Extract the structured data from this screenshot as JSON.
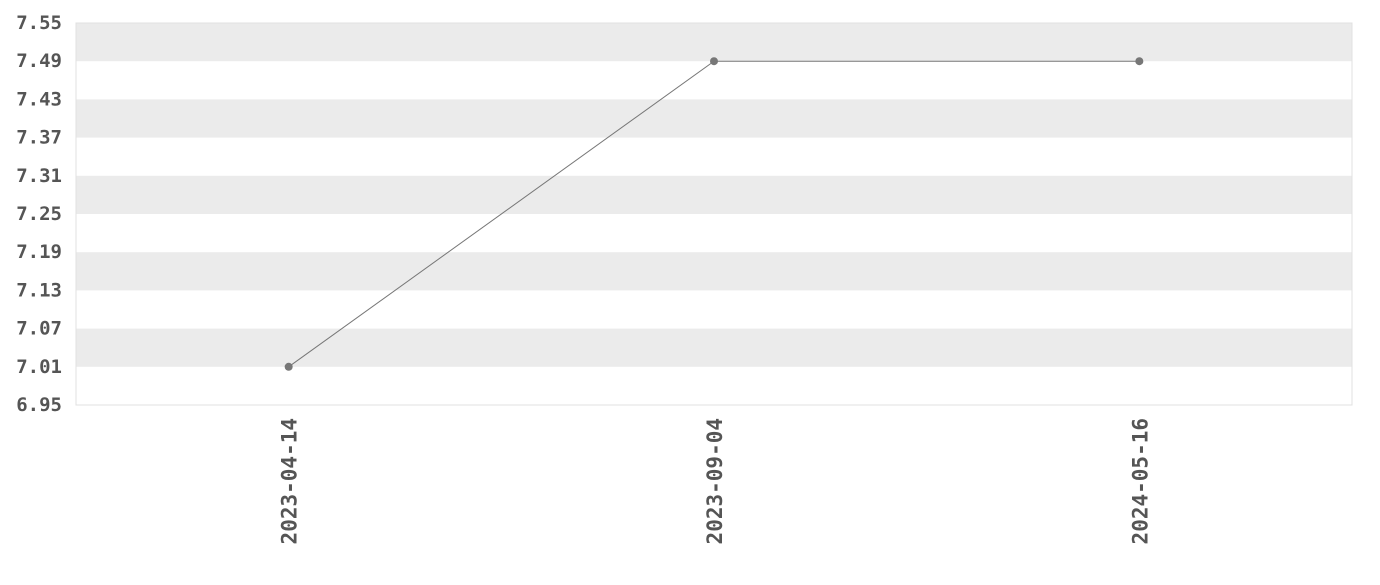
{
  "chart_data": {
    "type": "line",
    "title": "",
    "xlabel": "",
    "ylabel": "",
    "categories": [
      "2023-04-14",
      "2023-09-04",
      "2024-05-16"
    ],
    "series": [
      {
        "values": [
          7.01,
          7.49,
          7.49
        ]
      }
    ],
    "ylim": [
      6.95,
      7.55
    ],
    "yticks": [
      "6.95",
      "7.01",
      "7.07",
      "7.13",
      "7.19",
      "7.25",
      "7.31",
      "7.37",
      "7.43",
      "7.49",
      "7.55"
    ],
    "grid": "alternating horizontal bands",
    "colors": {
      "line": "#777777",
      "point": "#777777",
      "band": "#ebebeb",
      "text": "#555555"
    }
  }
}
